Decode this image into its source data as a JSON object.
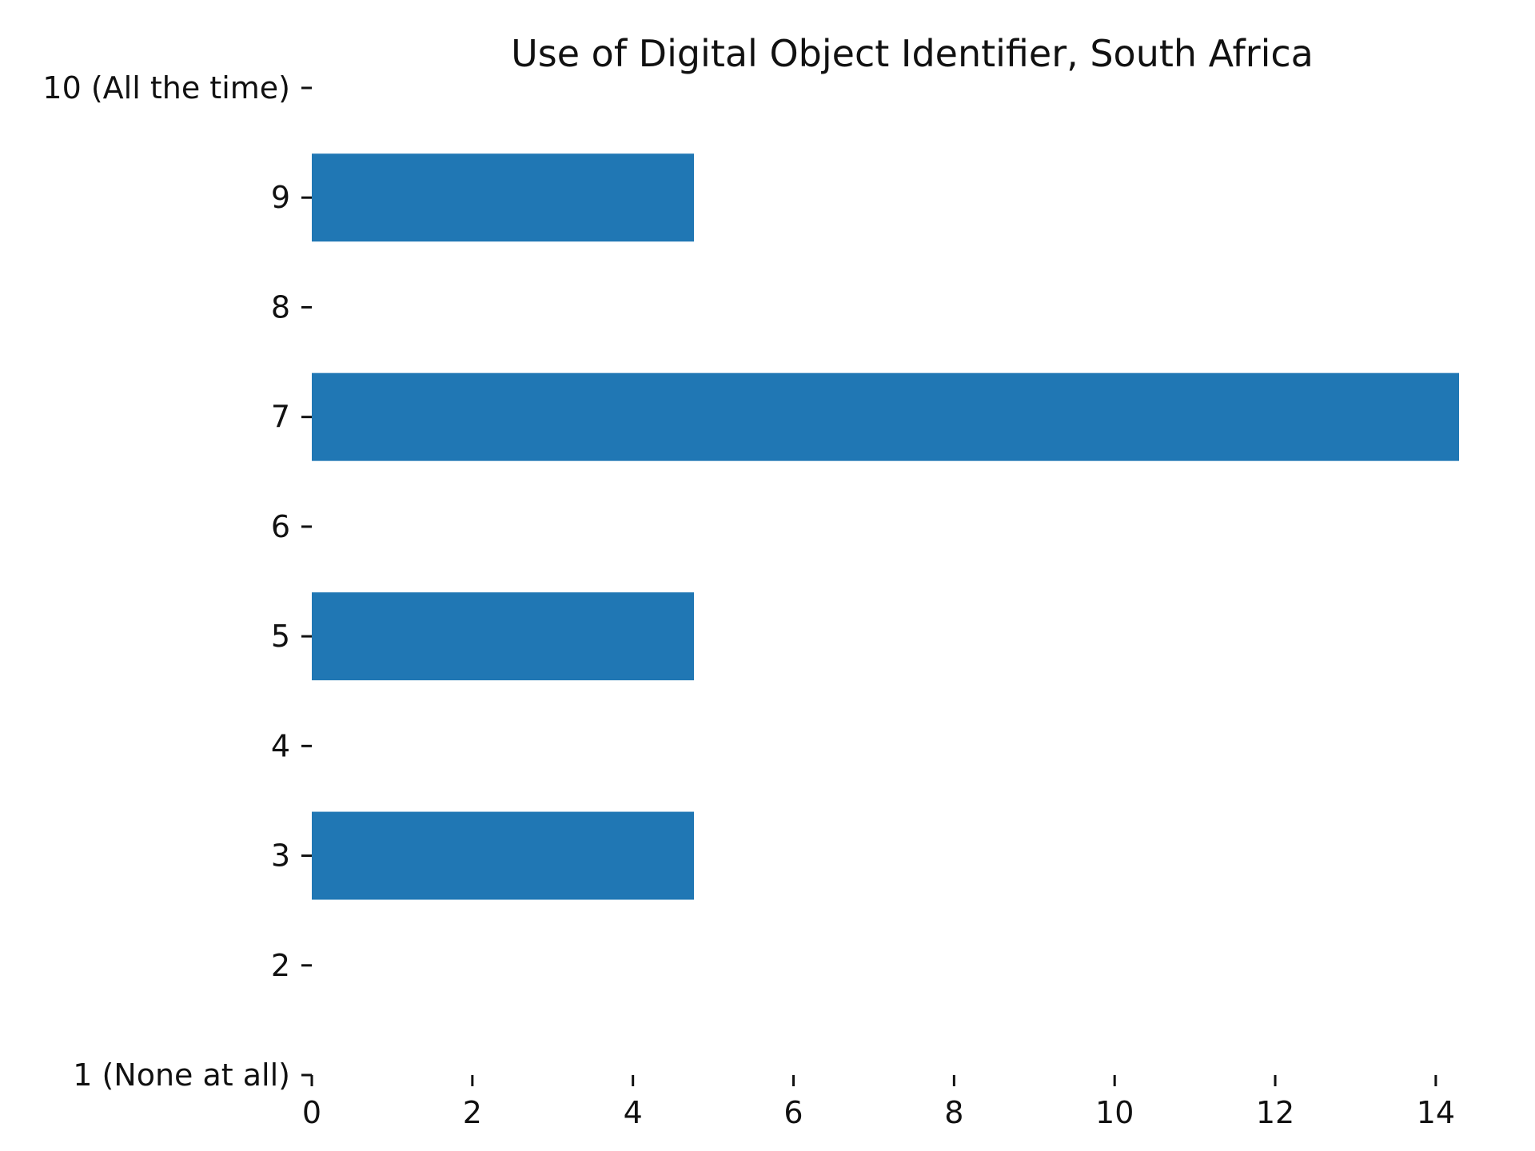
{
  "chart_data": {
    "type": "bar",
    "orientation": "horizontal",
    "title": "Use of Digital Object Identifier, South Africa",
    "xlabel": "",
    "ylabel": "",
    "categories": [
      "1 (None at all)",
      "2",
      "3",
      "4",
      "5",
      "6",
      "7",
      "8",
      "9",
      "10 (All the time)"
    ],
    "values": [
      0,
      0,
      4.76,
      0,
      4.76,
      0,
      14.29,
      0,
      4.76,
      0
    ],
    "xlim": [
      0,
      14.29
    ],
    "xticks": [
      "0",
      "2",
      "4",
      "6",
      "8",
      "10",
      "12",
      "14"
    ],
    "grid": false,
    "legend": "none",
    "bar_color": "#2077b4"
  }
}
